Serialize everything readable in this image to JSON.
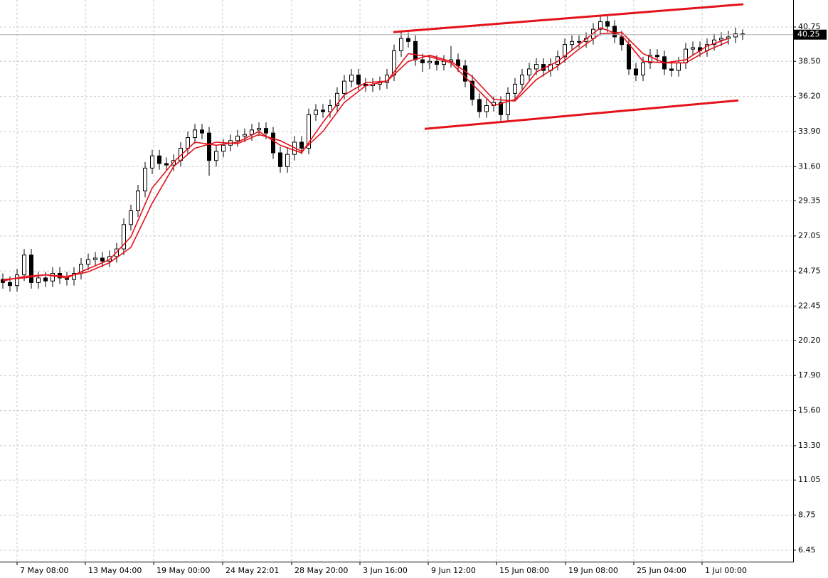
{
  "chart_data": {
    "type": "candlestick",
    "xlim": [
      -0.4,
      111.1
    ],
    "ylim": [
      5.7,
      42.52
    ],
    "xticks": [
      {
        "value": 2,
        "label": "7 May 08:00"
      },
      {
        "value": 11.6,
        "label": "13 May 04:00"
      },
      {
        "value": 21.2,
        "label": "19 May 00:00"
      },
      {
        "value": 30.9,
        "label": "24 May 22:01"
      },
      {
        "value": 40.6,
        "label": "28 May 20:00"
      },
      {
        "value": 50.2,
        "label": "3 Jun 16:00"
      },
      {
        "value": 59.8,
        "label": "9 Jun 12:00"
      },
      {
        "value": 69.4,
        "label": "15 Jun 08:00"
      },
      {
        "value": 79.1,
        "label": "19 Jun 08:00"
      },
      {
        "value": 88.7,
        "label": "25 Jun 04:00"
      },
      {
        "value": 98.3,
        "label": "1 Jul 00:00"
      }
    ],
    "yticks": [
      6.45,
      8.75,
      11.05,
      {
        "value": 13.3,
        "label": "13.30"
      },
      {
        "value": 15.6,
        "label": "15.60"
      },
      {
        "value": 17.9,
        "label": "17.90"
      },
      {
        "value": 20.2,
        "label": "20.20"
      },
      22.45,
      24.75,
      27.05,
      29.35,
      {
        "value": 31.6,
        "label": "31.60"
      },
      {
        "value": 33.9,
        "label": "33.90"
      },
      {
        "value": 36.2,
        "label": "36.20"
      },
      {
        "value": 38.5,
        "label": "38.50"
      },
      40.75
    ],
    "grid": true,
    "current_price": 40.25,
    "open": [
      24.2,
      24.0,
      23.8,
      24.5,
      25.8,
      24.0,
      24.3,
      24.1,
      24.6,
      24.3,
      24.2,
      24.6,
      25.2,
      25.5,
      25.6,
      25.4,
      25.7,
      26.2,
      27.8,
      28.7,
      30.0,
      31.5,
      32.3,
      31.8,
      31.7,
      32.0,
      32.8,
      33.5,
      34.0,
      33.8,
      32.0,
      32.6,
      33.0,
      33.3,
      33.6,
      33.7,
      34.0,
      34.1,
      33.8,
      32.5,
      31.6,
      32.4,
      33.2,
      32.8,
      35.0,
      35.3,
      35.2,
      35.6,
      36.4,
      37.2,
      37.6,
      37.0,
      36.9,
      37.0,
      37.1,
      37.6,
      39.2,
      40.0,
      39.8,
      38.6,
      38.4,
      38.5,
      38.3,
      38.5,
      38.6,
      38.2,
      37.2,
      36.0,
      35.2,
      35.6,
      35.8,
      35.0,
      36.4,
      37.0,
      37.6,
      38.0,
      38.3,
      37.9,
      38.3,
      38.8,
      39.6,
      39.8,
      39.8,
      40.0,
      40.6,
      41.1,
      40.8,
      40.1,
      39.6,
      38.0,
      37.6,
      38.4,
      38.9,
      38.8,
      38.0,
      37.9,
      38.4,
      39.3,
      39.4,
      39.2,
      39.6,
      39.9,
      40.0,
      40.1,
      40.3
    ],
    "high": [
      24.6,
      24.4,
      24.9,
      26.2,
      26.2,
      24.7,
      24.7,
      25.0,
      25.0,
      24.7,
      25.0,
      25.6,
      25.9,
      26.0,
      26.0,
      26.1,
      26.6,
      28.2,
      29.1,
      30.4,
      31.9,
      32.7,
      32.7,
      32.2,
      32.4,
      33.2,
      33.9,
      34.4,
      34.4,
      34.2,
      33.0,
      33.4,
      33.7,
      34.0,
      34.1,
      34.4,
      34.5,
      34.5,
      34.2,
      32.9,
      32.8,
      33.6,
      33.6,
      35.4,
      35.7,
      35.7,
      36.0,
      36.8,
      37.6,
      38.0,
      38.0,
      37.4,
      37.4,
      37.5,
      38.0,
      39.6,
      40.4,
      40.4,
      40.2,
      39.0,
      38.9,
      38.9,
      38.9,
      39.5,
      39.0,
      38.6,
      37.6,
      36.4,
      36.0,
      36.2,
      36.2,
      36.8,
      37.4,
      38.0,
      38.4,
      38.7,
      38.7,
      38.7,
      39.2,
      40.0,
      40.2,
      40.2,
      40.4,
      41.0,
      41.5,
      41.5,
      41.2,
      40.5,
      40.0,
      38.4,
      38.8,
      39.3,
      39.3,
      39.2,
      38.4,
      38.8,
      39.7,
      39.8,
      39.8,
      40.0,
      40.3,
      40.4,
      40.5,
      40.7,
      40.6
    ],
    "low": [
      23.6,
      23.4,
      23.4,
      24.1,
      23.6,
      23.6,
      23.7,
      23.7,
      23.9,
      23.8,
      23.8,
      24.2,
      24.8,
      25.1,
      25.0,
      25.0,
      25.3,
      25.8,
      27.4,
      28.3,
      29.6,
      31.1,
      31.4,
      31.3,
      31.3,
      31.6,
      32.4,
      33.1,
      33.4,
      31.0,
      31.6,
      32.2,
      32.6,
      32.9,
      33.2,
      33.3,
      33.6,
      33.4,
      32.1,
      31.2,
      31.2,
      32.0,
      32.4,
      32.4,
      34.6,
      34.8,
      34.8,
      35.2,
      36.0,
      36.8,
      36.6,
      36.5,
      36.5,
      36.6,
      36.7,
      37.2,
      38.8,
      39.4,
      38.2,
      37.8,
      38.0,
      37.9,
      37.9,
      38.1,
      37.8,
      36.8,
      35.6,
      34.8,
      34.8,
      35.2,
      34.6,
      34.6,
      36.0,
      36.6,
      37.2,
      37.6,
      37.5,
      37.5,
      37.9,
      38.4,
      39.2,
      39.4,
      39.4,
      39.6,
      40.2,
      40.4,
      39.7,
      39.2,
      37.6,
      37.2,
      37.2,
      38.0,
      38.4,
      37.6,
      37.5,
      37.5,
      38.0,
      38.9,
      38.8,
      38.8,
      39.2,
      39.5,
      39.6,
      39.7,
      39.9
    ],
    "close": [
      24.0,
      23.8,
      24.5,
      25.8,
      24.0,
      24.3,
      24.1,
      24.6,
      24.3,
      24.2,
      24.6,
      25.2,
      25.5,
      25.6,
      25.4,
      25.7,
      26.2,
      27.8,
      28.7,
      30.0,
      31.5,
      32.3,
      31.8,
      31.7,
      32.0,
      32.8,
      33.5,
      34.0,
      33.8,
      32.0,
      32.6,
      33.0,
      33.3,
      33.6,
      33.7,
      34.0,
      34.1,
      33.8,
      32.5,
      31.6,
      32.4,
      33.2,
      32.8,
      35.0,
      35.3,
      35.2,
      35.6,
      36.4,
      37.2,
      37.6,
      37.0,
      36.9,
      37.0,
      37.1,
      37.6,
      39.2,
      40.0,
      39.8,
      38.6,
      38.4,
      38.5,
      38.3,
      38.5,
      38.6,
      38.2,
      37.2,
      36.0,
      35.2,
      35.6,
      35.8,
      35.0,
      36.4,
      37.0,
      37.6,
      38.0,
      38.3,
      37.9,
      38.3,
      38.8,
      39.6,
      39.8,
      39.8,
      40.0,
      40.6,
      41.1,
      40.8,
      40.1,
      39.6,
      38.0,
      37.6,
      38.4,
      38.9,
      38.8,
      38.0,
      37.9,
      38.4,
      39.3,
      39.4,
      39.2,
      39.6,
      39.9,
      40.0,
      40.1,
      40.3,
      40.25
    ],
    "overlays": [
      {
        "color": "#e3121b",
        "x": [
          0,
          3,
          6,
          9,
          12,
          15,
          18,
          21,
          24,
          27,
          30,
          33,
          36,
          39,
          42,
          45,
          48,
          51,
          54,
          57,
          60,
          63,
          66,
          69,
          72,
          75,
          78,
          81,
          84,
          87,
          90,
          93,
          96,
          99,
          102
        ],
        "values": [
          24.1,
          24.4,
          24.5,
          24.3,
          24.9,
          25.5,
          27.0,
          30.2,
          31.9,
          33.2,
          33.0,
          33.2,
          33.9,
          33.0,
          32.5,
          34.5,
          36.3,
          37.1,
          37.2,
          39.0,
          38.8,
          38.4,
          37.0,
          35.6,
          36.0,
          37.8,
          38.5,
          39.6,
          40.7,
          40.2,
          38.5,
          38.4,
          38.6,
          39.5,
          40.0
        ]
      },
      {
        "color": "#e3121b",
        "x": [
          0,
          3,
          6,
          9,
          12,
          15,
          18,
          21,
          24,
          27,
          30,
          33,
          36,
          39,
          42,
          45,
          48,
          51,
          54,
          57,
          60,
          63,
          66,
          69,
          72,
          75,
          78,
          81,
          84,
          87,
          90,
          93,
          96,
          99,
          102
        ],
        "values": [
          24.2,
          24.3,
          24.5,
          24.4,
          24.7,
          25.3,
          26.3,
          29.2,
          31.6,
          32.8,
          33.2,
          33.1,
          33.7,
          33.3,
          32.6,
          33.9,
          35.8,
          36.9,
          37.2,
          38.5,
          38.9,
          38.5,
          37.5,
          36.0,
          35.9,
          37.3,
          38.2,
          39.3,
          40.3,
          40.4,
          39.0,
          38.4,
          38.4,
          39.2,
          39.8
        ]
      }
    ],
    "trendlines": [
      {
        "color": "#e3121b",
        "x": [
          54.9,
          104.1
        ],
        "values": [
          40.42,
          42.24
        ]
      },
      {
        "color": "#e3121b",
        "x": [
          59.3,
          103.4
        ],
        "values": [
          34.07,
          35.94
        ]
      }
    ]
  }
}
